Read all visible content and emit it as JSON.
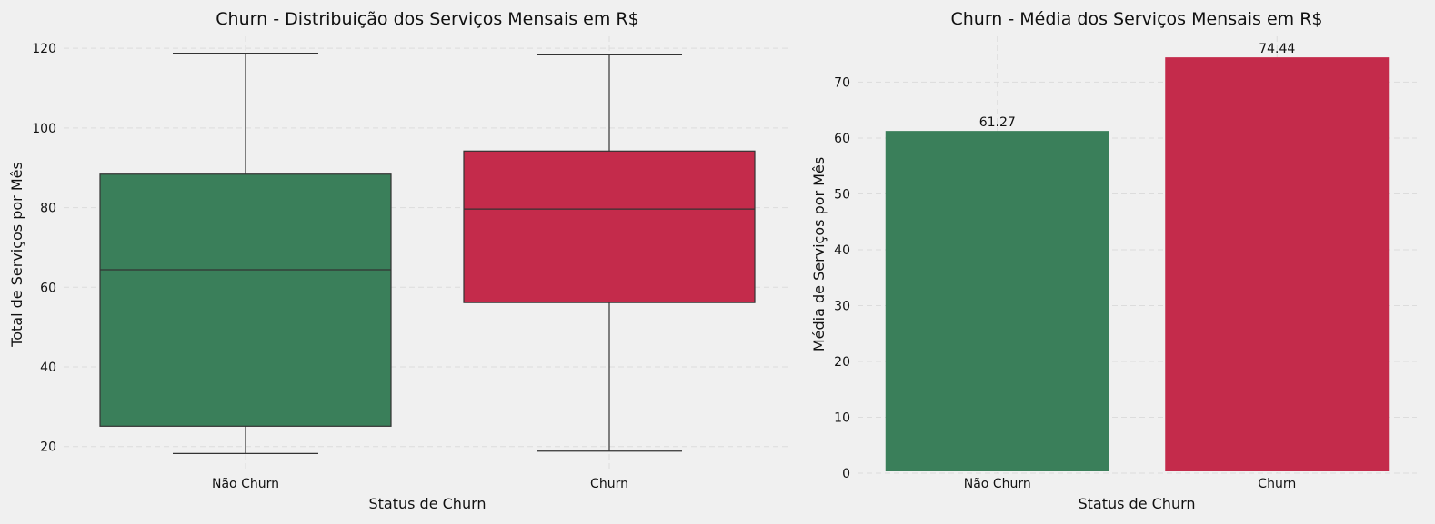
{
  "chart_data": [
    {
      "type": "box",
      "title": "Churn - Distribuição dos Serviços Mensais em R$",
      "xlabel": "Status de Churn",
      "ylabel": "Total de Serviços por Mês",
      "categories": [
        "Não Churn",
        "Churn"
      ],
      "boxes": [
        {
          "category": "Não Churn",
          "min": 18.25,
          "q1": 25.1,
          "median": 64.4,
          "q3": 88.4,
          "max": 118.75,
          "color": "#3a7f5a"
        },
        {
          "category": "Churn",
          "min": 18.85,
          "q1": 56.15,
          "median": 79.65,
          "q3": 94.2,
          "max": 118.35,
          "color": "#c42b4b"
        }
      ],
      "yticks": [
        20,
        40,
        60,
        80,
        100,
        120
      ],
      "ylim": [
        14,
        123
      ],
      "grid": true
    },
    {
      "type": "bar",
      "title": "Churn - Média dos Serviços Mensais em R$",
      "xlabel": "Status de Churn",
      "ylabel": "Média de Serviços por Mês",
      "categories": [
        "Não Churn",
        "Churn"
      ],
      "values": [
        61.27,
        74.44
      ],
      "data_labels": [
        "61.27",
        "74.44"
      ],
      "colors": [
        "#3a7f5a",
        "#c42b4b"
      ],
      "yticks": [
        0,
        10,
        20,
        30,
        40,
        50,
        60,
        70
      ],
      "ylim": [
        0,
        78.2
      ],
      "grid": true
    }
  ]
}
